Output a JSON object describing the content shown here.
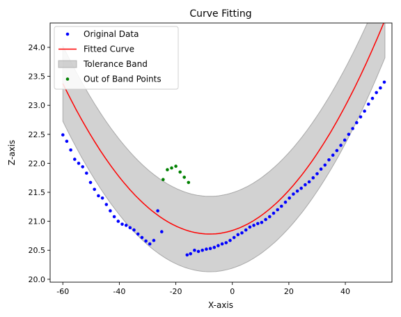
{
  "chart_data": {
    "type": "scatter",
    "title": "Curve Fitting",
    "xlabel": "X-axis",
    "ylabel": "Z-axis",
    "xlim": [
      -64.5,
      56.5
    ],
    "ylim": [
      19.95,
      24.42
    ],
    "x_ticks": [
      -60,
      -40,
      -20,
      0,
      20,
      40
    ],
    "y_ticks": [
      20.0,
      20.5,
      21.0,
      21.5,
      22.0,
      22.5,
      23.0,
      23.5,
      24.0
    ],
    "grid": false,
    "legend": {
      "placement": "top-left",
      "entries": [
        {
          "label": "Original Data",
          "marker": "dot",
          "color": "#0000ff"
        },
        {
          "label": "Fitted Curve",
          "marker": "line",
          "color": "#ff0000"
        },
        {
          "label": "Tolerance Band",
          "marker": "patch",
          "color": "#bfbfbf"
        },
        {
          "label": "Out of Band Points",
          "marker": "dot",
          "color": "#008000"
        }
      ]
    },
    "fit": {
      "a": 0.00096,
      "x0": -8,
      "c": 20.78,
      "x_range": [
        -60,
        54
      ],
      "band_low": 0.65,
      "band_high": 0.65,
      "band_growth": 0.0
    },
    "series": [
      {
        "name": "Original Data",
        "color": "#0000ff",
        "x": [
          -60,
          -58.6,
          -57.2,
          -55.8,
          -54.4,
          -53,
          -51.6,
          -50.2,
          -48.8,
          -47.4,
          -46,
          -44.6,
          -43.2,
          -41.8,
          -40.4,
          -39,
          -37.6,
          -36.2,
          -34.8,
          -33.4,
          -32,
          -30.6,
          -29.2,
          -27.8,
          -26.4,
          -25,
          -16,
          -14.8,
          -13.4,
          -12,
          -10.6,
          -9.2,
          -7.8,
          -6.4,
          -5,
          -3.6,
          -2.2,
          -0.8,
          0.6,
          2,
          3.4,
          4.8,
          6.2,
          7.6,
          9,
          10.4,
          11.8,
          13.2,
          14.6,
          16,
          17.4,
          18.8,
          20.2,
          21.6,
          23,
          24.4,
          25.8,
          27.2,
          28.6,
          30,
          31.4,
          32.8,
          34.2,
          35.6,
          37,
          38.4,
          39.8,
          41.2,
          42.6,
          44,
          45.4,
          46.8,
          48.2,
          49.6,
          51,
          52.4,
          53.8
        ],
        "y": [
          22.49,
          22.38,
          22.23,
          22.07,
          22.0,
          21.94,
          21.83,
          21.67,
          21.55,
          21.44,
          21.4,
          21.29,
          21.18,
          21.08,
          21.0,
          20.95,
          20.93,
          20.89,
          20.85,
          20.78,
          20.72,
          20.66,
          20.61,
          20.67,
          21.18,
          20.82,
          20.42,
          20.44,
          20.5,
          20.48,
          20.5,
          20.52,
          20.53,
          20.55,
          20.58,
          20.61,
          20.63,
          20.67,
          20.72,
          20.77,
          20.8,
          20.85,
          20.9,
          20.93,
          20.96,
          20.98,
          21.03,
          21.08,
          21.14,
          21.2,
          21.26,
          21.33,
          21.4,
          21.47,
          21.52,
          21.57,
          21.63,
          21.68,
          21.75,
          21.82,
          21.9,
          21.97,
          22.06,
          22.14,
          22.22,
          22.31,
          22.4,
          22.5,
          22.6,
          22.7,
          22.8,
          22.9,
          23.02,
          23.12,
          23.22,
          23.3,
          23.4
        ]
      },
      {
        "name": "Out of Band Points",
        "color": "#008000",
        "x": [
          -24.5,
          -23,
          -21.5,
          -20,
          -18.5,
          -17,
          -15.5
        ],
        "y": [
          21.72,
          21.89,
          21.92,
          21.95,
          21.85,
          21.76,
          21.67
        ]
      }
    ]
  }
}
